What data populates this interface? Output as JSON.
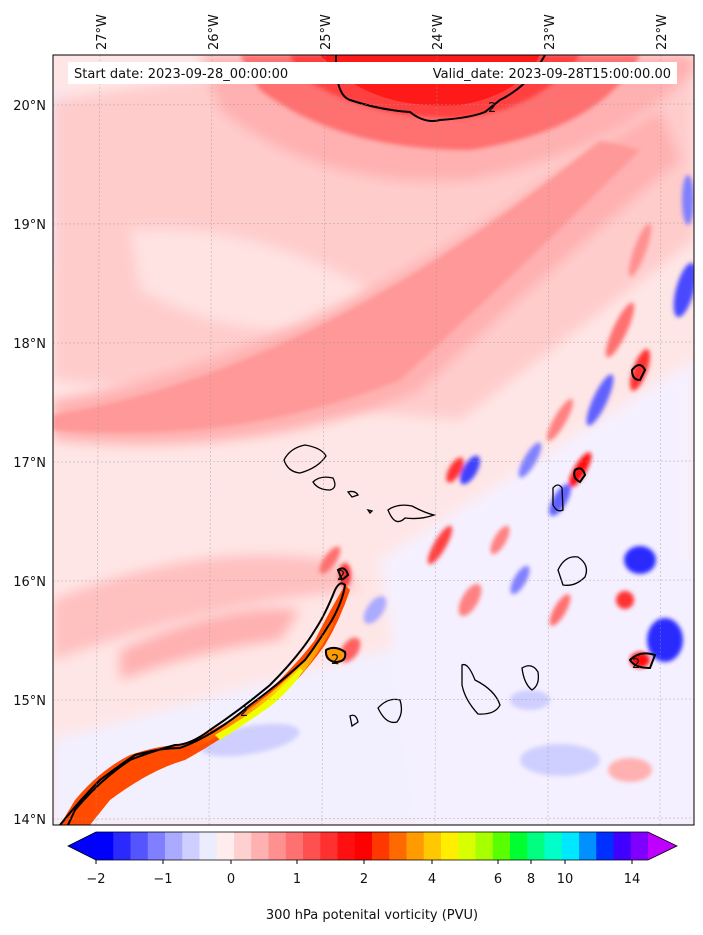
{
  "header": {
    "start_label": "Start date: 2023-09-28_00:00:00",
    "valid_label": "Valid_date: 2023-09-28T15:00:00.00"
  },
  "axes": {
    "lon_ticks": [
      "27°W",
      "26°W",
      "25°W",
      "24°W",
      "23°W",
      "22°W"
    ],
    "lat_ticks": [
      "20°N",
      "19°N",
      "18°N",
      "17°N",
      "16°N",
      "15°N",
      "14°N"
    ]
  },
  "contour_labels": [
    "2",
    "2",
    "2",
    "2",
    "2"
  ],
  "colorbar": {
    "label": "300 hPa potenital vorticity (PVU)",
    "tick_labels": [
      "−2",
      "−1",
      "0",
      "1",
      "2",
      "4",
      "6",
      "8",
      "10",
      "14"
    ],
    "colors": [
      "#0000ff",
      "#2a2aff",
      "#5555ff",
      "#7f7fff",
      "#aaaaff",
      "#cfcfff",
      "#ececff",
      "#ffecec",
      "#ffd0d0",
      "#ffb0b0",
      "#ff9090",
      "#ff7070",
      "#ff5050",
      "#ff3030",
      "#ff1010",
      "#ff0000",
      "#ff3800",
      "#ff6a00",
      "#ff9a00",
      "#ffc800",
      "#ffee00",
      "#d8ff00",
      "#a8ff00",
      "#58ff00",
      "#00ff30",
      "#00ff80",
      "#00ffc8",
      "#00e8ff",
      "#0090ff",
      "#0030ff",
      "#4000ff",
      "#8000ff"
    ],
    "extend_low": "#0000ff",
    "extend_high": "#c000ff"
  }
}
